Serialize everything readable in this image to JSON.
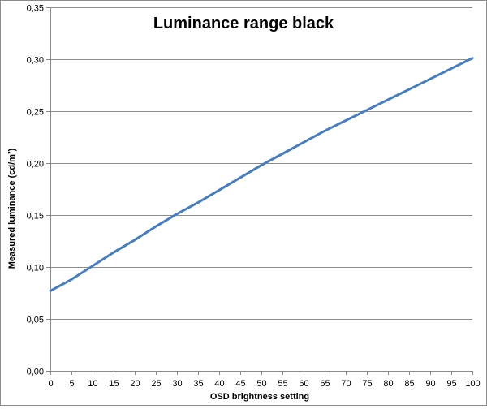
{
  "chart_data": {
    "type": "line",
    "title": "Luminance range black",
    "xlabel": "OSD brightness setting",
    "ylabel": "Measured luminance (cd/m²)",
    "xlim": [
      0,
      100
    ],
    "ylim": [
      0,
      0.35
    ],
    "x_ticks": [
      "0",
      "5",
      "10",
      "15",
      "20",
      "25",
      "30",
      "35",
      "40",
      "45",
      "50",
      "55",
      "60",
      "65",
      "70",
      "75",
      "80",
      "85",
      "90",
      "95",
      "100"
    ],
    "y_ticks": [
      "0,00",
      "0,05",
      "0,10",
      "0,15",
      "0,20",
      "0,25",
      "0,30",
      "0,35"
    ],
    "grid": "horizontal",
    "legend": "none",
    "series": [
      {
        "color": "#4a7ebb",
        "x": [
          0,
          5,
          10,
          15,
          20,
          25,
          30,
          35,
          40,
          45,
          50,
          55,
          60,
          65,
          70,
          75,
          80,
          85,
          90,
          95,
          100
        ],
        "y": [
          0.077,
          0.088,
          0.101,
          0.114,
          0.126,
          0.139,
          0.151,
          0.162,
          0.174,
          0.186,
          0.198,
          0.209,
          0.22,
          0.231,
          0.241,
          0.251,
          0.261,
          0.271,
          0.281,
          0.291,
          0.301
        ]
      }
    ]
  }
}
